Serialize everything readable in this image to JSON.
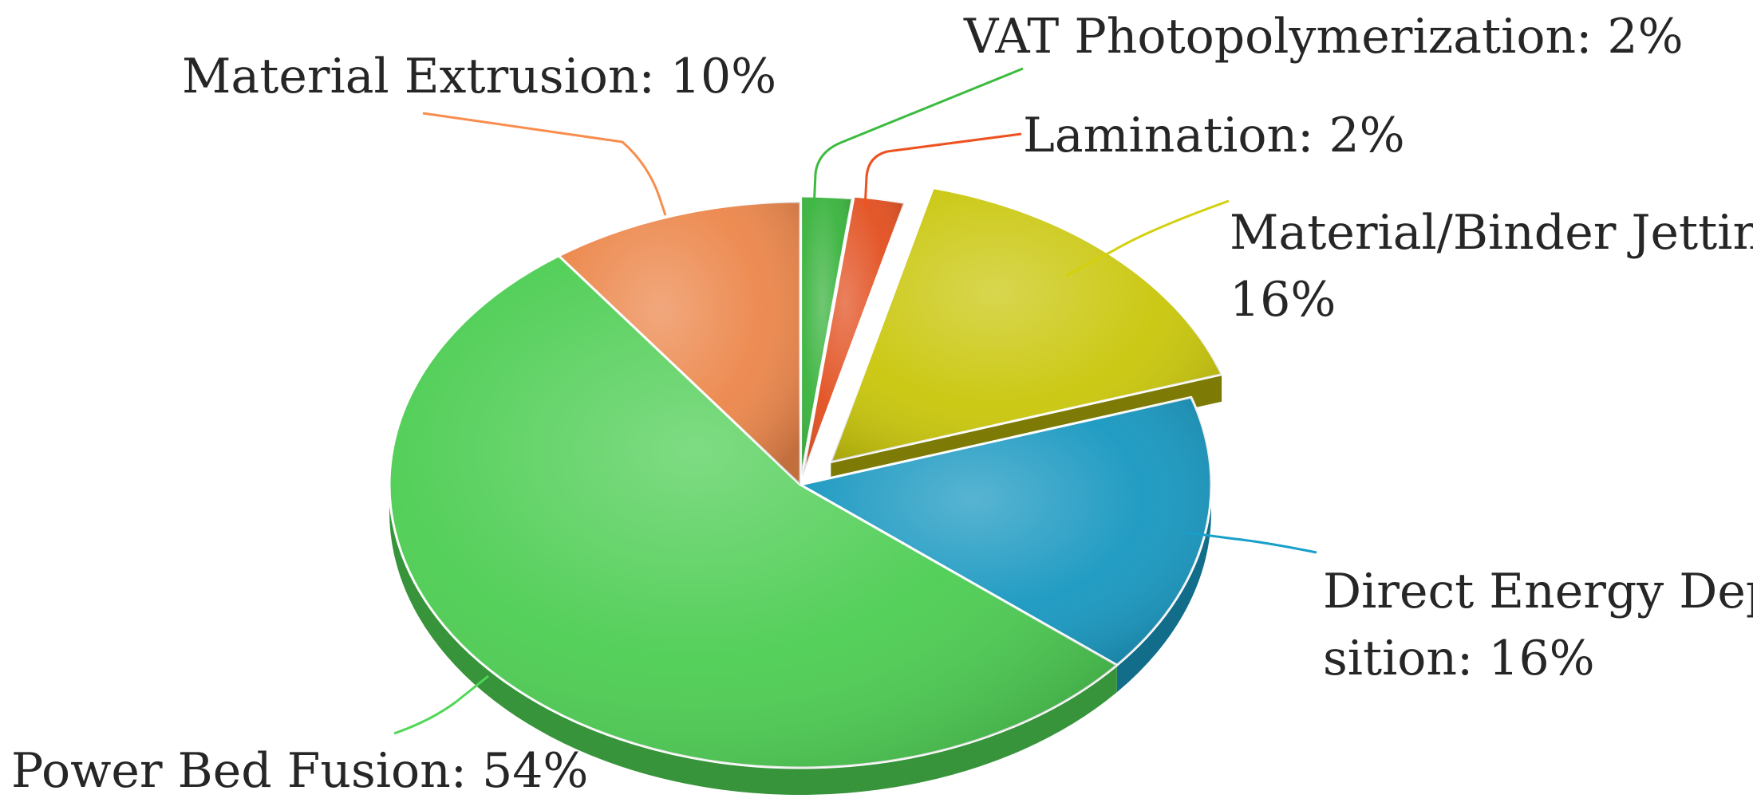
{
  "chart_data": {
    "type": "pie",
    "style": "3d-exploded",
    "slices": [
      {
        "label": "VAT Photopolymerization",
        "value": 2,
        "color": "#38b23c"
      },
      {
        "label": "Lamination",
        "value": 2,
        "color": "#e24f1f"
      },
      {
        "label": "Material/Binder Jetting",
        "value": 16,
        "color": "#c9c60a"
      },
      {
        "label": "Direct Energy Deposition",
        "value": 16,
        "color": "#1797c0"
      },
      {
        "label": "Power Bed Fusion",
        "value": 54,
        "color": "#4ccd52"
      },
      {
        "label": "Material Extrusion",
        "value": 10,
        "color": "#ec864a"
      }
    ],
    "data_labels": [
      {
        "line1": "VAT Photopolymerization: 2%"
      },
      {
        "line1": "Lamination: 2%"
      },
      {
        "line1": "Material/Binder Jetting:",
        "line2": "16%"
      },
      {
        "line1": "Direct Energy Depo-",
        "line2": "sition: 16%"
      },
      {
        "line1": "Power Bed Fusion: 54%"
      },
      {
        "line1": "Material Extrusion: 10%"
      }
    ]
  }
}
